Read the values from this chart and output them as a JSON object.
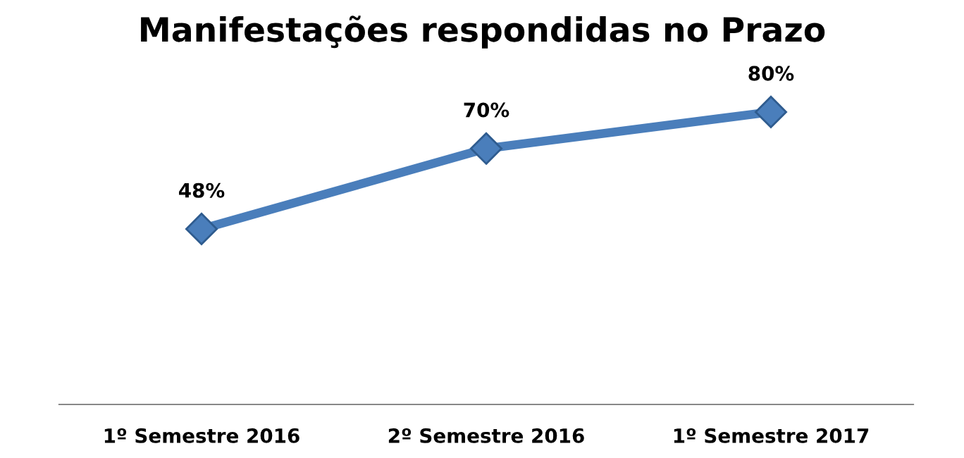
{
  "chart_data": {
    "type": "line",
    "title": "Manifestações respondidas no Prazo",
    "categories": [
      "1º Semestre 2016",
      "2º Semestre 2016",
      "1º Semestre 2017"
    ],
    "series": [
      {
        "color": "#4a7ebb",
        "values": [
          48,
          70,
          80
        ],
        "value_labels": [
          "48%",
          "70%",
          "80%"
        ]
      }
    ],
    "marker": "diamond",
    "line_style": "solid",
    "grid": false,
    "legend": false,
    "tick_labels": "x"
  }
}
